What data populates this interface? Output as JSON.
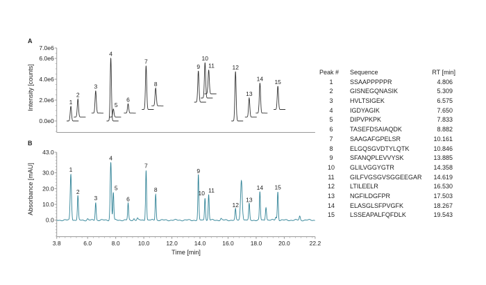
{
  "panel_labels": {
    "a": "A",
    "b": "B"
  },
  "chart_data": [
    {
      "type": "line",
      "panel": "A",
      "ylabel": "Intensity [counts]",
      "xlim": [
        3.8,
        22.2
      ],
      "ylim": [
        -1100000.0,
        7000000.0
      ],
      "yticks": [
        {
          "value": 0,
          "label": "0.0e0"
        },
        {
          "value": 2000000.0,
          "label": "2.0e6"
        },
        {
          "value": 4000000.0,
          "label": "4.0e6"
        },
        {
          "value": 6000000.0,
          "label": "6.0e6"
        },
        {
          "value": 7000000.0,
          "label": "7.0e6"
        }
      ],
      "color": "#333333",
      "peaks": [
        {
          "label": "1",
          "rt": 4.806,
          "apex": 1400000.0,
          "baseline": 0
        },
        {
          "label": "2",
          "rt": 5.309,
          "apex": 2100000.0,
          "baseline": 380000.0
        },
        {
          "label": "3",
          "rt": 6.575,
          "apex": 2900000.0,
          "baseline": 750000.0
        },
        {
          "label": "4",
          "rt": 7.65,
          "apex": 6050000.0,
          "baseline": 0
        },
        {
          "label": "5",
          "rt": 7.833,
          "apex": 1150000.0,
          "baseline": 380000.0
        },
        {
          "label": "6",
          "rt": 8.882,
          "apex": 1650000.0,
          "baseline": 750000.0
        },
        {
          "label": "7",
          "rt": 10.161,
          "apex": 5300000.0,
          "baseline": 1100000.0
        },
        {
          "label": "8",
          "rt": 10.846,
          "apex": 3150000.0,
          "baseline": 1450000.0
        },
        {
          "label": "9",
          "rt": 13.885,
          "apex": 4800000.0,
          "baseline": 1800000.0
        },
        {
          "label": "10",
          "rt": 14.358,
          "apex": 5600000.0,
          "baseline": 2200000.0
        },
        {
          "label": "11",
          "rt": 14.619,
          "apex": 4900000.0,
          "baseline": 2600000.0
        },
        {
          "label": "12",
          "rt": 16.53,
          "apex": 4750000.0,
          "baseline": 0
        },
        {
          "label": "13",
          "rt": 17.503,
          "apex": 2200000.0,
          "baseline": 380000.0
        },
        {
          "label": "14",
          "rt": 18.267,
          "apex": 3650000.0,
          "baseline": 750000.0
        },
        {
          "label": "15",
          "rt": 19.543,
          "apex": 3350000.0,
          "baseline": 1100000.0
        }
      ]
    },
    {
      "type": "line",
      "panel": "B",
      "xlabel": "Time [min]",
      "ylabel": "Absorbance [mAU]",
      "xlim": [
        3.8,
        22.2
      ],
      "ylim": [
        -10.5,
        43.0
      ],
      "xticks": [
        {
          "value": 3.8,
          "label": "3.8"
        },
        {
          "value": 6,
          "label": "6.0"
        },
        {
          "value": 8,
          "label": "8.0"
        },
        {
          "value": 10,
          "label": "10.0"
        },
        {
          "value": 12,
          "label": "12.0"
        },
        {
          "value": 14,
          "label": "14.0"
        },
        {
          "value": 16,
          "label": "16.0"
        },
        {
          "value": 18,
          "label": "18.0"
        },
        {
          "value": 20,
          "label": "20.0"
        },
        {
          "value": 22.2,
          "label": "22.2"
        }
      ],
      "yticks": [
        {
          "value": 0,
          "label": "0.0"
        },
        {
          "value": 10,
          "label": "10.0"
        },
        {
          "value": 20,
          "label": "20.0"
        },
        {
          "value": 30,
          "label": "30.0"
        },
        {
          "value": 43,
          "label": "43.0"
        }
      ],
      "color": "#2f8296",
      "peaks": [
        {
          "label": "1",
          "rt": 4.806,
          "height": 29.4
        },
        {
          "label": "2",
          "rt": 5.309,
          "height": 15.3
        },
        {
          "label": "3",
          "rt": 6.575,
          "height": 11.3
        },
        {
          "label": "4",
          "rt": 7.65,
          "height": 36.7
        },
        {
          "label": "5",
          "rt": 7.833,
          "height": 17.6
        },
        {
          "label": "6",
          "rt": 8.882,
          "height": 10.6
        },
        {
          "label": "7",
          "rt": 10.161,
          "height": 31.9
        },
        {
          "label": "8",
          "rt": 10.846,
          "height": 16.6
        },
        {
          "label": "9",
          "rt": 13.885,
          "height": 28.6
        },
        {
          "label": "10",
          "rt": 14.358,
          "height": 14.3
        },
        {
          "label": "11",
          "rt": 14.619,
          "height": 16.2
        },
        {
          "label": "12",
          "rt": 16.53,
          "height": 6.9
        },
        {
          "label": "13",
          "rt": 17.503,
          "height": 10.3
        },
        {
          "label": "14",
          "rt": 18.267,
          "height": 17.9
        },
        {
          "label": "15",
          "rt": 19.543,
          "height": 18.1
        }
      ],
      "unlabeled_peaks": [
        {
          "rt": 16.95,
          "height": 25.4
        },
        {
          "rt": 18.7,
          "height": 8.4
        },
        {
          "rt": 19.4,
          "height": 2.0
        },
        {
          "rt": 21.1,
          "height": 2.5
        },
        {
          "rt": 15.5,
          "height": 1.0
        },
        {
          "rt": 6.0,
          "height": 0.8
        },
        {
          "rt": 9.3,
          "height": 1.0
        },
        {
          "rt": 9.55,
          "height": 1.2
        }
      ]
    }
  ],
  "table": {
    "headers": [
      "Peak #",
      "Sequence",
      "RT [min]"
    ],
    "rows": [
      [
        "1",
        "SSAAPPPPPR",
        "4.806"
      ],
      [
        "2",
        "GISNEGQNASIK",
        "5.309"
      ],
      [
        "3",
        "HVLTSIGEK",
        "6.575"
      ],
      [
        "4",
        "IGDYAGIK",
        "7.650"
      ],
      [
        "5",
        "DIPVPKPK",
        "7.833"
      ],
      [
        "6",
        "TASEFDSAIAQDK",
        "8.882"
      ],
      [
        "7",
        "SAAGAFGPELSR",
        "10.161"
      ],
      [
        "8",
        "ELGQSGVDTYLQTK",
        "10.846"
      ],
      [
        "9",
        "SFANQPLEVVYSK",
        "13.885"
      ],
      [
        "10",
        "GLILVGGYGTR",
        "14.358"
      ],
      [
        "11",
        "GILFVGSGVSGGEEGAR",
        "14.619"
      ],
      [
        "12",
        "LTILEELR",
        "16.530"
      ],
      [
        "13",
        "NGFILDGFPR",
        "17.503"
      ],
      [
        "14",
        "ELASGLSFPVGFK",
        "18.267"
      ],
      [
        "15",
        "LSSEAPALFQFDLK",
        "19.543"
      ]
    ]
  }
}
